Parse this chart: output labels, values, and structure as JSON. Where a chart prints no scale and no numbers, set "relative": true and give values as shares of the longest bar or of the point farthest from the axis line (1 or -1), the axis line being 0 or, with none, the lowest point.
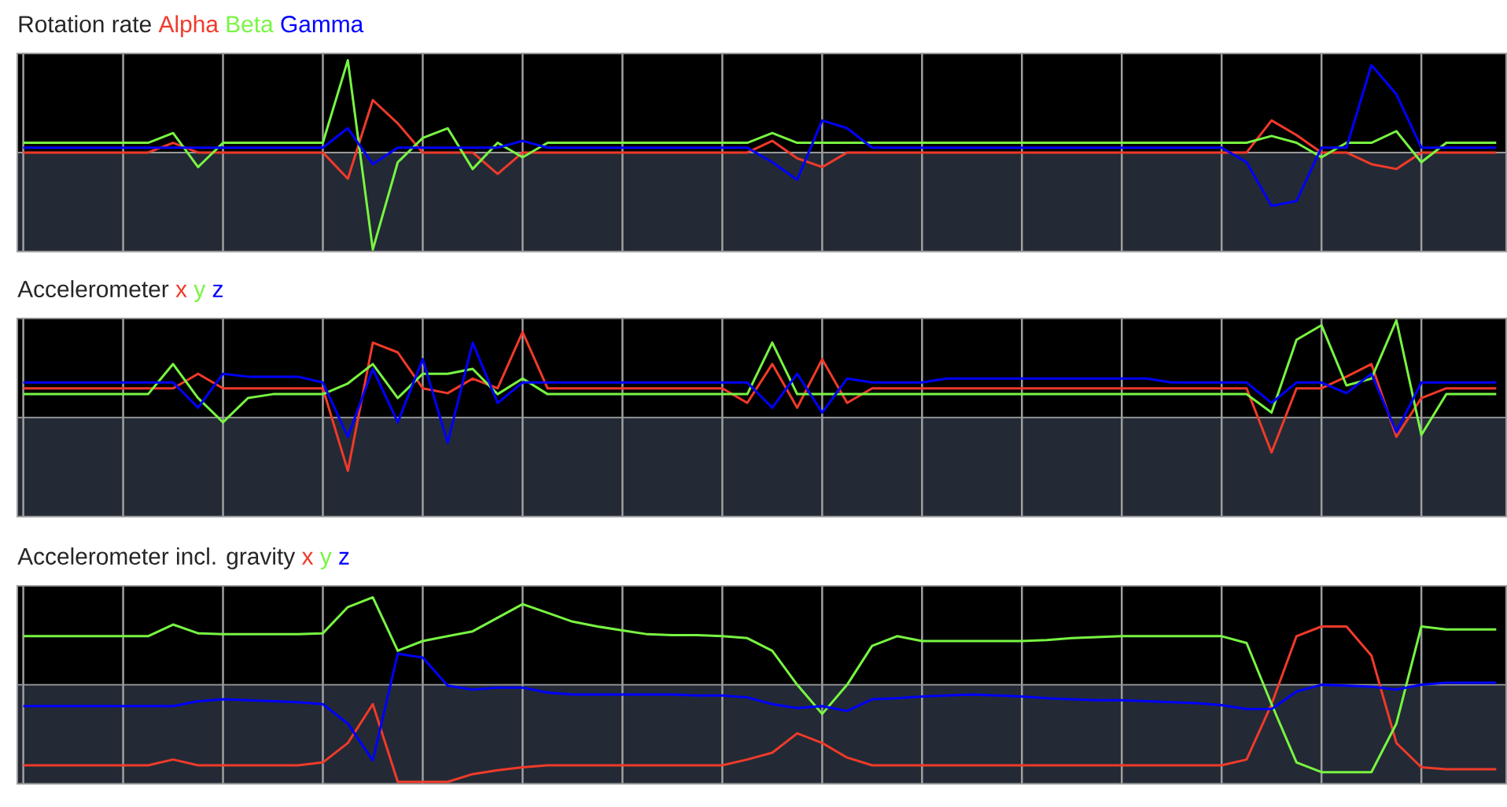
{
  "chart_data": [
    {
      "type": "line",
      "title": "Rotation rate",
      "relative": true,
      "grid": "x",
      "categories": [
        null,
        null,
        null,
        null,
        null,
        null,
        null,
        null,
        null,
        null,
        null,
        null,
        null,
        null,
        null,
        null,
        null,
        null,
        null,
        null,
        null,
        null,
        null,
        null,
        null,
        null,
        null,
        null,
        null,
        null,
        null,
        null,
        null,
        null,
        null,
        null,
        null,
        null,
        null,
        null,
        null,
        null,
        null,
        null,
        null,
        null,
        null,
        null,
        null,
        null,
        null,
        null,
        null,
        null,
        null,
        null,
        null,
        null,
        null,
        null
      ],
      "series": [
        {
          "name": "Alpha",
          "color": "#f03a2a",
          "values": [
            0,
            0,
            0,
            0,
            0,
            0,
            0.1,
            0,
            0,
            0,
            0,
            0,
            0,
            -0.27,
            0.54,
            0.3,
            0,
            0,
            0,
            -0.22,
            0,
            0,
            0,
            0,
            0,
            0,
            0,
            0,
            0,
            0,
            0.12,
            -0.06,
            -0.15,
            0,
            0,
            0,
            0,
            0,
            0,
            0,
            0,
            0,
            0,
            0,
            0,
            0,
            0,
            0,
            0,
            0,
            0.33,
            0.18,
            0,
            0,
            -0.12,
            -0.17,
            0,
            0,
            0,
            0
          ]
        },
        {
          "name": "Beta",
          "color": "#78f542",
          "values": [
            0.1,
            0.1,
            0.1,
            0.1,
            0.1,
            0.1,
            0.2,
            -0.15,
            0.1,
            0.1,
            0.1,
            0.1,
            0.1,
            0.95,
            -1.0,
            -0.1,
            0.15,
            0.25,
            -0.17,
            0.1,
            -0.05,
            0.1,
            0.1,
            0.1,
            0.1,
            0.1,
            0.1,
            0.1,
            0.1,
            0.1,
            0.2,
            0.1,
            0.1,
            0.1,
            0.1,
            0.1,
            0.1,
            0.1,
            0.1,
            0.1,
            0.1,
            0.1,
            0.1,
            0.1,
            0.1,
            0.1,
            0.1,
            0.1,
            0.1,
            0.1,
            0.17,
            0.1,
            -0.05,
            0.1,
            0.1,
            0.22,
            -0.1,
            0.1,
            0.1,
            0.1
          ]
        },
        {
          "name": "Gamma",
          "color": "#0000ff",
          "values": [
            0.05,
            0.05,
            0.05,
            0.05,
            0.05,
            0.05,
            0.05,
            0.05,
            0.05,
            0.05,
            0.05,
            0.05,
            0.05,
            0.25,
            -0.12,
            0.05,
            0.05,
            0.05,
            0.05,
            0.05,
            0.12,
            0.05,
            0.05,
            0.05,
            0.05,
            0.05,
            0.05,
            0.05,
            0.05,
            0.05,
            -0.1,
            -0.28,
            0.33,
            0.25,
            0.05,
            0.05,
            0.05,
            0.05,
            0.05,
            0.05,
            0.05,
            0.05,
            0.05,
            0.05,
            0.05,
            0.05,
            0.05,
            0.05,
            0.05,
            -0.1,
            -0.55,
            -0.5,
            0.05,
            0.05,
            0.9,
            0.6,
            0.05,
            0.05,
            0.05,
            0.05
          ]
        }
      ]
    },
    {
      "type": "line",
      "title": "Accelerometer",
      "relative": true,
      "grid": "x",
      "categories": [
        null,
        null,
        null,
        null,
        null,
        null,
        null,
        null,
        null,
        null,
        null,
        null,
        null,
        null,
        null,
        null,
        null,
        null,
        null,
        null,
        null,
        null,
        null,
        null,
        null,
        null,
        null,
        null,
        null,
        null,
        null,
        null,
        null,
        null,
        null,
        null,
        null,
        null,
        null,
        null,
        null,
        null,
        null,
        null,
        null,
        null,
        null,
        null,
        null,
        null,
        null,
        null,
        null,
        null,
        null,
        null,
        null,
        null,
        null,
        null
      ],
      "series": [
        {
          "name": "x",
          "color": "#f03a2a",
          "values": [
            0.3,
            0.3,
            0.3,
            0.3,
            0.3,
            0.3,
            0.3,
            0.45,
            0.3,
            0.3,
            0.3,
            0.3,
            0.3,
            -0.55,
            0.77,
            0.67,
            0.3,
            0.25,
            0.4,
            0.3,
            0.88,
            0.3,
            0.3,
            0.3,
            0.3,
            0.3,
            0.3,
            0.3,
            0.3,
            0.15,
            0.55,
            0.1,
            0.6,
            0.15,
            0.3,
            0.3,
            0.3,
            0.3,
            0.3,
            0.3,
            0.3,
            0.3,
            0.3,
            0.3,
            0.3,
            0.3,
            0.3,
            0.3,
            0.3,
            0.3,
            -0.36,
            0.3,
            0.3,
            0.42,
            0.55,
            -0.2,
            0.2,
            0.3,
            0.3,
            0.3
          ]
        },
        {
          "name": "y",
          "color": "#78f542",
          "values": [
            0.24,
            0.24,
            0.24,
            0.24,
            0.24,
            0.24,
            0.55,
            0.2,
            -0.05,
            0.2,
            0.24,
            0.24,
            0.24,
            0.35,
            0.55,
            0.2,
            0.45,
            0.45,
            0.5,
            0.24,
            0.4,
            0.24,
            0.24,
            0.24,
            0.24,
            0.24,
            0.24,
            0.24,
            0.24,
            0.24,
            0.77,
            0.24,
            0.24,
            0.24,
            0.24,
            0.24,
            0.24,
            0.24,
            0.24,
            0.24,
            0.24,
            0.24,
            0.24,
            0.24,
            0.24,
            0.24,
            0.24,
            0.24,
            0.24,
            0.24,
            0.05,
            0.8,
            0.95,
            0.33,
            0.4,
            1.0,
            -0.18,
            0.24,
            0.24,
            0.24
          ]
        },
        {
          "name": "z",
          "color": "#0000ff",
          "values": [
            0.36,
            0.36,
            0.36,
            0.36,
            0.36,
            0.36,
            0.36,
            0.1,
            0.45,
            0.42,
            0.42,
            0.42,
            0.36,
            -0.2,
            0.5,
            -0.05,
            0.6,
            -0.26,
            0.77,
            0.15,
            0.36,
            0.36,
            0.36,
            0.36,
            0.36,
            0.36,
            0.36,
            0.36,
            0.36,
            0.36,
            0.1,
            0.45,
            0.05,
            0.4,
            0.36,
            0.36,
            0.36,
            0.4,
            0.4,
            0.4,
            0.4,
            0.4,
            0.4,
            0.4,
            0.4,
            0.4,
            0.36,
            0.36,
            0.36,
            0.36,
            0.15,
            0.36,
            0.36,
            0.25,
            0.45,
            -0.15,
            0.36,
            0.36,
            0.36,
            0.36
          ]
        }
      ]
    },
    {
      "type": "line",
      "title": "Accelerometer incl. gravity",
      "relative": true,
      "grid": "x",
      "categories": [
        null,
        null,
        null,
        null,
        null,
        null,
        null,
        null,
        null,
        null,
        null,
        null,
        null,
        null,
        null,
        null,
        null,
        null,
        null,
        null,
        null,
        null,
        null,
        null,
        null,
        null,
        null,
        null,
        null,
        null,
        null,
        null,
        null,
        null,
        null,
        null,
        null,
        null,
        null,
        null,
        null,
        null,
        null,
        null,
        null,
        null,
        null,
        null,
        null,
        null,
        null,
        null,
        null,
        null,
        null,
        null,
        null,
        null,
        null,
        null
      ],
      "series": [
        {
          "name": "x",
          "color": "#f03a2a",
          "values": [
            -0.83,
            -0.83,
            -0.83,
            -0.83,
            -0.83,
            -0.83,
            -0.77,
            -0.83,
            -0.83,
            -0.83,
            -0.83,
            -0.83,
            -0.8,
            -0.6,
            -0.2,
            -1.0,
            -1.0,
            -1.0,
            -0.92,
            -0.88,
            -0.85,
            -0.83,
            -0.83,
            -0.83,
            -0.83,
            -0.83,
            -0.83,
            -0.83,
            -0.83,
            -0.77,
            -0.7,
            -0.5,
            -0.6,
            -0.75,
            -0.83,
            -0.83,
            -0.83,
            -0.83,
            -0.83,
            -0.83,
            -0.83,
            -0.83,
            -0.83,
            -0.83,
            -0.83,
            -0.83,
            -0.83,
            -0.83,
            -0.83,
            -0.77,
            -0.2,
            0.5,
            0.6,
            0.6,
            0.3,
            -0.6,
            -0.85,
            -0.87,
            -0.87,
            -0.87
          ]
        },
        {
          "name": "y",
          "color": "#78f542",
          "values": [
            0.5,
            0.5,
            0.5,
            0.5,
            0.5,
            0.5,
            0.62,
            0.53,
            0.52,
            0.52,
            0.52,
            0.52,
            0.53,
            0.8,
            0.9,
            0.35,
            0.45,
            0.5,
            0.55,
            0.69,
            0.83,
            0.74,
            0.65,
            0.6,
            0.56,
            0.52,
            0.51,
            0.51,
            0.5,
            0.48,
            0.35,
            0,
            -0.3,
            0,
            0.4,
            0.5,
            0.45,
            0.45,
            0.45,
            0.45,
            0.45,
            0.46,
            0.48,
            0.49,
            0.5,
            0.5,
            0.5,
            0.5,
            0.5,
            0.43,
            -0.2,
            -0.8,
            -0.9,
            -0.9,
            -0.9,
            -0.4,
            0.6,
            0.57,
            0.57,
            0.57
          ]
        },
        {
          "name": "z",
          "color": "#0000ff",
          "values": [
            -0.22,
            -0.22,
            -0.22,
            -0.22,
            -0.22,
            -0.22,
            -0.22,
            -0.17,
            -0.15,
            -0.16,
            -0.17,
            -0.18,
            -0.2,
            -0.4,
            -0.78,
            0.32,
            0.28,
            -0.01,
            -0.05,
            -0.03,
            -0.03,
            -0.08,
            -0.1,
            -0.1,
            -0.1,
            -0.1,
            -0.1,
            -0.11,
            -0.11,
            -0.13,
            -0.2,
            -0.24,
            -0.22,
            -0.27,
            -0.15,
            -0.14,
            -0.12,
            -0.11,
            -0.1,
            -0.11,
            -0.12,
            -0.14,
            -0.15,
            -0.16,
            -0.16,
            -0.17,
            -0.18,
            -0.19,
            -0.21,
            -0.25,
            -0.25,
            -0.07,
            0,
            -0.01,
            -0.02,
            -0.05,
            0,
            0.02,
            0.02,
            0.02
          ]
        }
      ]
    }
  ]
}
